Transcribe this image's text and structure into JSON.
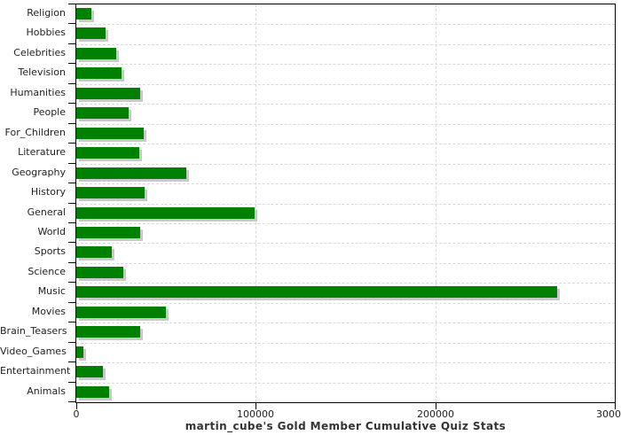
{
  "chart_data": {
    "type": "bar",
    "orientation": "horizontal",
    "title": "martin_cube's Gold Member Cumulative Quiz Stats",
    "categories": [
      "Religion",
      "Hobbies",
      "Celebrities",
      "Television",
      "Humanities",
      "People",
      "For_Children",
      "Literature",
      "Geography",
      "History",
      "General",
      "World",
      "Sports",
      "Science",
      "Music",
      "Movies",
      "Brain_Teasers",
      "Video_Games",
      "Entertainment",
      "Animals"
    ],
    "values": [
      8400,
      16300,
      22200,
      25200,
      35600,
      29200,
      37600,
      35100,
      61300,
      38100,
      99300,
      35600,
      19800,
      26200,
      267900,
      49900,
      35600,
      4000,
      14800,
      18300
    ],
    "xlabel": "",
    "ylabel": "",
    "xlim": [
      0,
      300000
    ],
    "xticks": [
      0,
      100000,
      200000,
      300000
    ],
    "xtick_labels": [
      "0",
      "100000",
      "200000",
      "300000"
    ],
    "grid": "dashed",
    "legend": "none"
  },
  "colors": {
    "bar": "#008000",
    "bar_shadow": "#c9c9c9",
    "gridline": "#d9d9d9",
    "axis": "#000000",
    "tick_text": "#222222",
    "title_text": "#333333",
    "background": "#ffffff"
  }
}
